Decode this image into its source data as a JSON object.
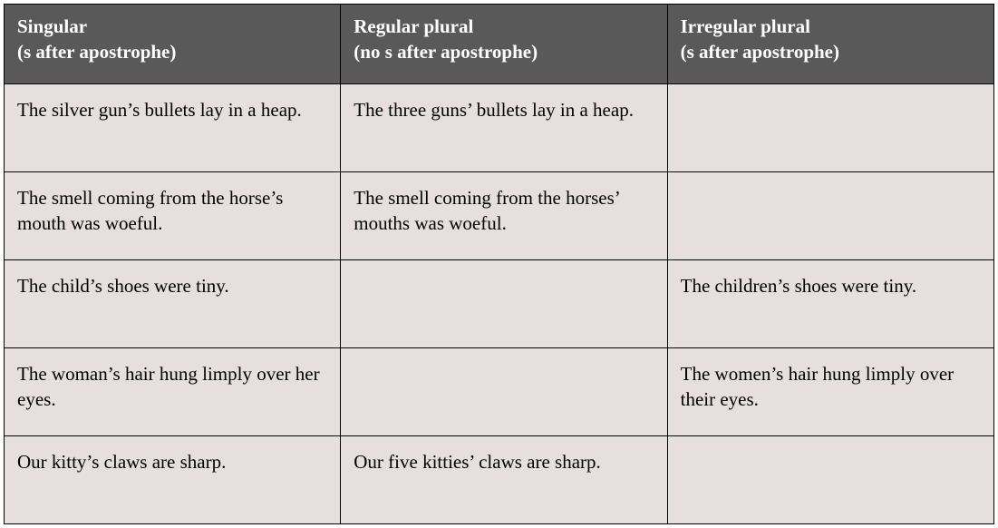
{
  "table": {
    "columns": [
      {
        "title": "Singular",
        "subtitle": "(s after apostrophe)"
      },
      {
        "title": "Regular plural",
        "subtitle": "(no s after apostrophe)"
      },
      {
        "title": "Irregular plural",
        "subtitle": "(s after apostrophe)"
      }
    ],
    "rows": [
      {
        "singular": "The silver gun’s bullets lay in a heap.",
        "regular": "The three guns’ bullets lay in a heap.",
        "irregular": ""
      },
      {
        "singular": "The smell coming from the horse’s mouth was woeful.",
        "regular": "The smell coming from the horses’ mouths was woeful.",
        "irregular": ""
      },
      {
        "singular": "The child’s shoes were tiny.",
        "regular": "",
        "irregular": "The children’s shoes were tiny."
      },
      {
        "singular": "The woman’s hair hung limply over her eyes.",
        "regular": "",
        "irregular": "The women’s hair hung limply over their eyes."
      },
      {
        "singular": "Our kitty’s claws are sharp.",
        "regular": "Our five kitties’ claws are sharp.",
        "irregular": ""
      }
    ],
    "header_bg": "#595959",
    "header_fg": "#ffffff",
    "cell_bg": "#e7dfdf",
    "cell_fg": "#000000",
    "border_color": "#000000",
    "font_family": "Times New Roman",
    "header_fontsize": 21,
    "cell_fontsize": 21
  }
}
